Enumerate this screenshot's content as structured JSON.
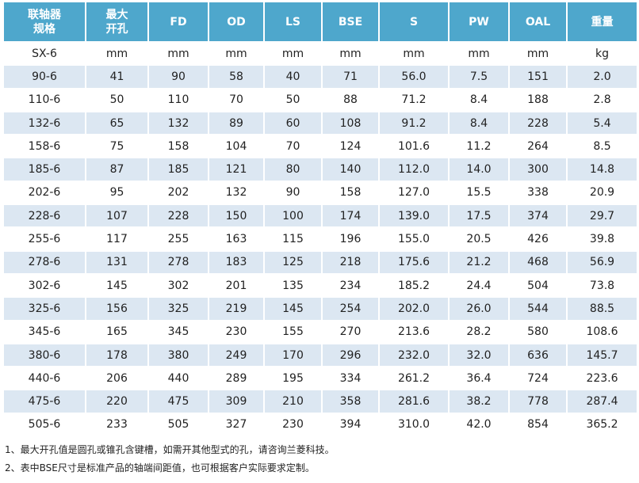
{
  "table": {
    "header": [
      [
        "联轴器",
        "规格"
      ],
      [
        "最大",
        "开孔"
      ],
      [
        "FD"
      ],
      [
        "OD"
      ],
      [
        "LS"
      ],
      [
        "BSE"
      ],
      [
        "S"
      ],
      [
        "PW"
      ],
      [
        "OAL"
      ],
      [
        "重量"
      ]
    ],
    "rows": [
      [
        "SX-6",
        "mm",
        "mm",
        "mm",
        "mm",
        "mm",
        "mm",
        "mm",
        "mm",
        "kg"
      ],
      [
        "90-6",
        "41",
        "90",
        "58",
        "40",
        "71",
        "56.0",
        "7.5",
        "151",
        "2.0"
      ],
      [
        "110-6",
        "50",
        "110",
        "70",
        "50",
        "88",
        "71.2",
        "8.4",
        "188",
        "2.8"
      ],
      [
        "132-6",
        "65",
        "132",
        "89",
        "60",
        "108",
        "91.2",
        "8.4",
        "228",
        "5.4"
      ],
      [
        "158-6",
        "75",
        "158",
        "104",
        "70",
        "124",
        "101.6",
        "11.2",
        "264",
        "8.5"
      ],
      [
        "185-6",
        "87",
        "185",
        "121",
        "80",
        "140",
        "112.0",
        "14.0",
        "300",
        "14.8"
      ],
      [
        "202-6",
        "95",
        "202",
        "132",
        "90",
        "158",
        "127.0",
        "15.5",
        "338",
        "20.9"
      ],
      [
        "228-6",
        "107",
        "228",
        "150",
        "100",
        "174",
        "139.0",
        "17.5",
        "374",
        "29.7"
      ],
      [
        "255-6",
        "117",
        "255",
        "163",
        "115",
        "196",
        "155.0",
        "20.5",
        "426",
        "39.8"
      ],
      [
        "278-6",
        "131",
        "278",
        "183",
        "125",
        "218",
        "175.6",
        "21.2",
        "468",
        "56.9"
      ],
      [
        "302-6",
        "145",
        "302",
        "201",
        "135",
        "234",
        "185.2",
        "24.4",
        "504",
        "73.8"
      ],
      [
        "325-6",
        "156",
        "325",
        "219",
        "145",
        "254",
        "202.0",
        "26.0",
        "544",
        "88.5"
      ],
      [
        "345-6",
        "165",
        "345",
        "230",
        "155",
        "270",
        "213.6",
        "28.2",
        "580",
        "108.6"
      ],
      [
        "380-6",
        "178",
        "380",
        "249",
        "170",
        "296",
        "232.0",
        "32.0",
        "636",
        "145.7"
      ],
      [
        "440-6",
        "206",
        "440",
        "289",
        "195",
        "334",
        "261.2",
        "36.4",
        "724",
        "223.6"
      ],
      [
        "475-6",
        "220",
        "475",
        "309",
        "210",
        "358",
        "281.6",
        "38.2",
        "778",
        "287.4"
      ],
      [
        "505-6",
        "233",
        "505",
        "327",
        "230",
        "394",
        "310.0",
        "42.0",
        "854",
        "365.2"
      ]
    ]
  },
  "notes": [
    "1、最大开孔值是圆孔或锥孔含键槽，如需开其他型式的孔，请咨询兰菱科技。",
    "2、表中BSE尺寸是标准产品的轴端间距值，也可根据客户实际要求定制。"
  ]
}
